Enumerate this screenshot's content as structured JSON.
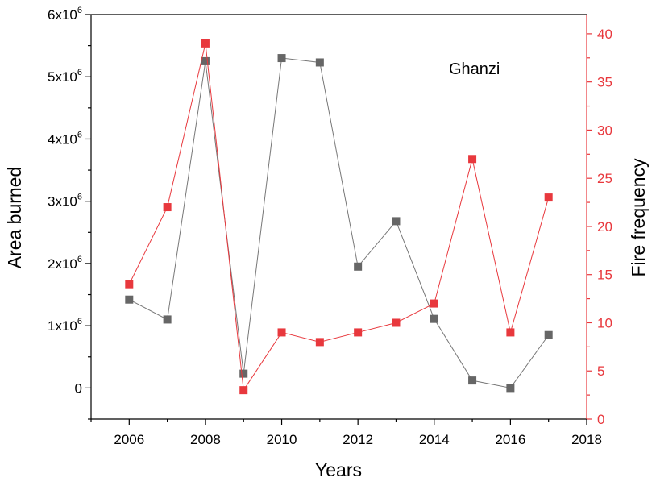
{
  "chart_data": {
    "type": "line",
    "annotation": "Ghanzi",
    "x": [
      2006,
      2007,
      2008,
      2009,
      2010,
      2011,
      2012,
      2013,
      2014,
      2015,
      2016,
      2017
    ],
    "xlabel": "Years",
    "xlim": [
      2005,
      2018
    ],
    "xticks": [
      2006,
      2008,
      2010,
      2012,
      2014,
      2016,
      2018
    ],
    "xtick_labels": [
      "2006",
      "2008",
      "2010",
      "2012",
      "2014",
      "2016",
      "2018"
    ],
    "left_axis": {
      "label": "Area burned",
      "lim": [
        -500000,
        6000000
      ],
      "ticks": [
        0,
        1000000,
        2000000,
        3000000,
        4000000,
        5000000,
        6000000
      ],
      "tick_mantissa": [
        "0",
        "1x10",
        "2x10",
        "3x10",
        "4x10",
        "5x10",
        "6x10"
      ],
      "tick_exponent": [
        "",
        "6",
        "6",
        "6",
        "6",
        "6",
        "6"
      ],
      "color": "#000000"
    },
    "right_axis": {
      "label": "Fire frequency",
      "lim": [
        0,
        42
      ],
      "ticks": [
        0,
        5,
        10,
        15,
        20,
        25,
        30,
        35,
        40
      ],
      "tick_labels": [
        "0",
        "5",
        "10",
        "15",
        "20",
        "25",
        "30",
        "35",
        "40"
      ],
      "color": "#e8383d"
    },
    "series": [
      {
        "axis": "left",
        "color": "#666666",
        "line_color": "#777777",
        "marker": "square",
        "values": [
          1420000,
          1100000,
          5250000,
          230000,
          5300000,
          5230000,
          1950000,
          2680000,
          1110000,
          120000,
          0,
          850000
        ]
      },
      {
        "axis": "right",
        "color": "#e8383d",
        "line_color": "#e8383d",
        "marker": "square",
        "values": [
          14,
          22,
          39,
          3,
          9,
          8,
          9,
          10,
          12,
          27,
          9,
          23
        ]
      }
    ],
    "grid": false,
    "legend": "none"
  }
}
